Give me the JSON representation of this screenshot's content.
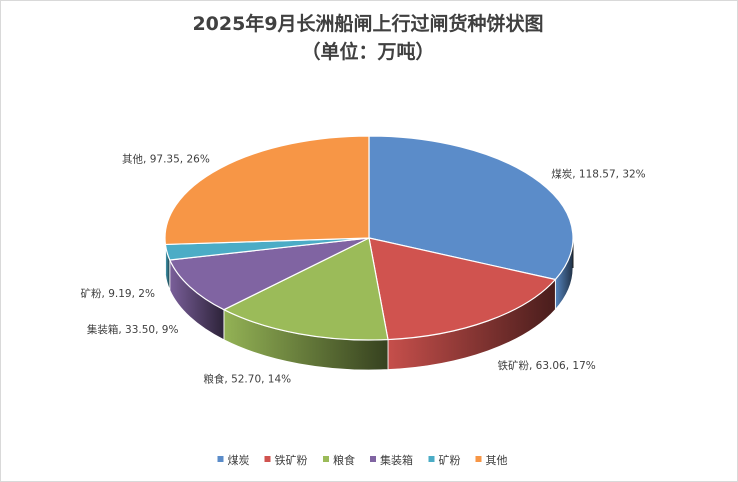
{
  "chart_data": {
    "type": "pie",
    "title_line1": "2025年9月长洲船闸上行过闸货种饼状图",
    "title_line2": "（单位：万吨）",
    "categories": [
      "煤炭",
      "铁矿粉",
      "粮食",
      "集装箱",
      "矿粉",
      "其他"
    ],
    "values": [
      118.57,
      63.06,
      52.7,
      33.5,
      9.19,
      97.35
    ],
    "percent_labels": [
      "32%",
      "17%",
      "14%",
      "9%",
      "2%",
      "26%"
    ],
    "data_labels": [
      "煤炭, 118.57, 32%",
      "铁矿粉, 63.06, 17%",
      "粮食, 52.70, 14%",
      "集装箱, 33.50, 9%",
      "矿粉, 9.19, 2%",
      "其他, 97.35, 26%"
    ],
    "colors": [
      "#5b8cc9",
      "#d0534f",
      "#9bbb59",
      "#8064a2",
      "#4bacc6",
      "#f79646"
    ],
    "style": "3d",
    "legend_position": "bottom"
  }
}
